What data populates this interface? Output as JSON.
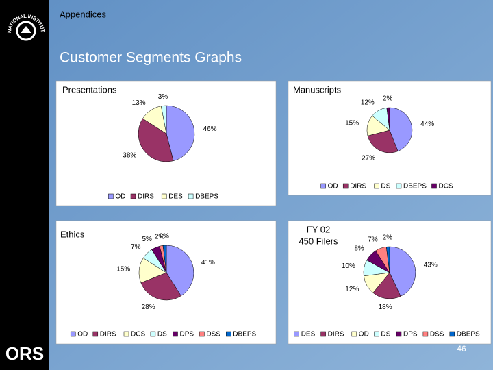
{
  "header": {
    "section": "Appendices",
    "title": "Customer Segments Graphs",
    "page_number": "46",
    "brand": "ORS",
    "logo": "NATIONAL INSTITUTES OF HEALTH"
  },
  "chart_data": [
    {
      "type": "pie",
      "title": "Presentations",
      "categories": [
        "OD",
        "DIRS",
        "DES",
        "DBEPS"
      ],
      "values": [
        46,
        38,
        13,
        3
      ],
      "value_labels": [
        "46%",
        "38%",
        "13%",
        "3%"
      ],
      "colors": [
        "#9999ff",
        "#993366",
        "#ffffcc",
        "#ccffff"
      ]
    },
    {
      "type": "pie",
      "title": "Manuscripts",
      "categories": [
        "OD",
        "DIRS",
        "DS",
        "DBEPS",
        "DCS"
      ],
      "values": [
        44,
        27,
        15,
        12,
        2
      ],
      "value_labels": [
        "44%",
        "27%",
        "15%",
        "12%",
        "2%"
      ],
      "colors": [
        "#9999ff",
        "#993366",
        "#ffffcc",
        "#ccffff",
        "#660066"
      ]
    },
    {
      "type": "pie",
      "title": "Ethics",
      "categories": [
        "OD",
        "DIRS",
        "DCS",
        "DS",
        "DPS",
        "DSS",
        "DBEPS"
      ],
      "values": [
        41,
        28,
        15,
        7,
        5,
        2,
        2
      ],
      "value_labels": [
        "41%",
        "28%",
        "15%",
        "7%",
        "5%",
        "2%",
        "2%"
      ],
      "colors": [
        "#9999ff",
        "#993366",
        "#ffffcc",
        "#ccffff",
        "#660066",
        "#ff8080",
        "#0066cc"
      ]
    },
    {
      "type": "pie",
      "title": "FY 02",
      "subtitle": "450 Filers",
      "categories": [
        "DES",
        "DIRS",
        "OD",
        "DS",
        "DPS",
        "DSS",
        "DBEPS"
      ],
      "values": [
        43,
        18,
        12,
        10,
        8,
        7,
        2
      ],
      "value_labels": [
        "43%",
        "18%",
        "12%",
        "10%",
        "8%",
        "7%",
        "2%"
      ],
      "colors": [
        "#9999ff",
        "#993366",
        "#ffffcc",
        "#ccffff",
        "#660066",
        "#ff8080",
        "#0066cc"
      ]
    }
  ]
}
